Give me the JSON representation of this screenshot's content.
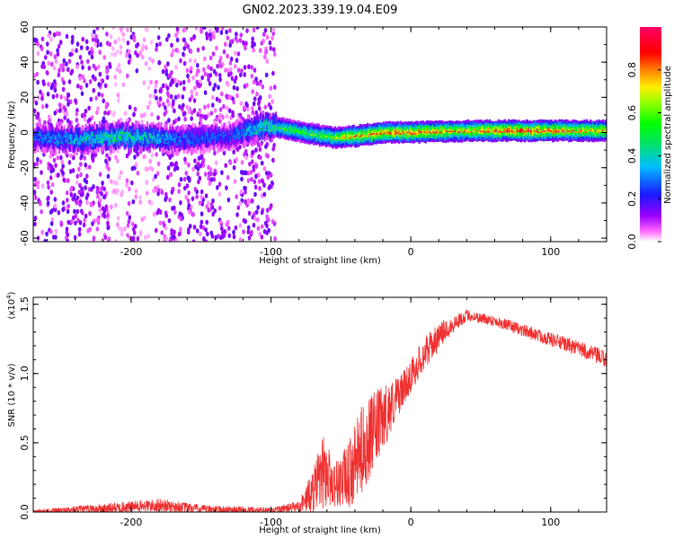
{
  "title": "GN02.2023.339.19.04.E09",
  "colors": {
    "snr_line": "#ef3030",
    "axes": "#000000",
    "colorbar": [
      "#ffffff",
      "#ff66ff",
      "#9900ff",
      "#1a1aff",
      "#00bfff",
      "#00e070",
      "#99ff00",
      "#ffee00",
      "#ff8000",
      "#ff0000",
      "#ff0066"
    ]
  },
  "chart_data": [
    {
      "type": "heatmap",
      "name": "spectrogram",
      "xlabel": "Height of straight line (km)",
      "ylabel": "Frequency (Hz)",
      "xlim": [
        -270,
        140
      ],
      "ylim": [
        -62,
        60
      ],
      "xticks": [
        -200,
        -100,
        0,
        100
      ],
      "xtick_labels": [
        "-200",
        "-100",
        "0",
        "100"
      ],
      "yticks": [
        -60,
        -40,
        -20,
        0,
        20,
        40,
        60
      ],
      "ytick_labels": [
        "-60",
        "-40",
        "-20",
        "0",
        "20",
        "40",
        "60"
      ],
      "colorbar": {
        "label": "Normalized spectral amplitude",
        "range": [
          0,
          1
        ],
        "ticks": [
          0.0,
          0.2,
          0.4,
          0.6,
          0.8
        ],
        "tick_labels": [
          "0.0",
          "0.2",
          "0.4",
          "0.6",
          "0.8"
        ]
      },
      "features": {
        "noise_region_x": [
          -270,
          -97
        ],
        "noise_gaps_x": [
          [
            -215,
            -203
          ],
          [
            -195,
            -183
          ]
        ],
        "signal_track": [
          {
            "x": -265,
            "f": -3,
            "amp": 0.35
          },
          {
            "x": -240,
            "f": -4,
            "amp": 0.45
          },
          {
            "x": -210,
            "f": -2,
            "amp": 0.55
          },
          {
            "x": -190,
            "f": -3,
            "amp": 0.5
          },
          {
            "x": -165,
            "f": -4,
            "amp": 0.35
          },
          {
            "x": -130,
            "f": -2,
            "amp": 0.3
          },
          {
            "x": -105,
            "f": 4,
            "amp": 0.55
          },
          {
            "x": -90,
            "f": 2,
            "amp": 0.6
          },
          {
            "x": -70,
            "f": -1,
            "amp": 0.65
          },
          {
            "x": -55,
            "f": -3,
            "amp": 0.7
          },
          {
            "x": -40,
            "f": -2,
            "amp": 0.9
          },
          {
            "x": -20,
            "f": 0,
            "amp": 0.9
          },
          {
            "x": 0,
            "f": 0,
            "amp": 0.95
          },
          {
            "x": 40,
            "f": 1,
            "amp": 0.85
          },
          {
            "x": 80,
            "f": 1,
            "amp": 1.0
          },
          {
            "x": 110,
            "f": 1,
            "amp": 0.9
          },
          {
            "x": 140,
            "f": 1,
            "amp": 0.85
          }
        ]
      }
    },
    {
      "type": "line",
      "name": "snr",
      "xlabel": "Height of straight line (km)",
      "ylabel": "SNR (10 * v/v)",
      "y_multiplier_label": "(x10",
      "y_multiplier_exp": "4",
      "y_multiplier_close": ")",
      "xlim": [
        -270,
        140
      ],
      "ylim": [
        0,
        1.55
      ],
      "xticks": [
        -200,
        -100,
        0,
        100
      ],
      "xtick_labels": [
        "-200",
        "-100",
        "0",
        "100"
      ],
      "yticks": [
        0.0,
        0.5,
        1.0,
        1.5
      ],
      "ytick_labels": [
        "0.0",
        "0.5",
        "1.0",
        "1.5"
      ],
      "envelope": [
        {
          "x": -270,
          "y": 0.0,
          "noise": 0.02
        },
        {
          "x": -210,
          "y": 0.03,
          "noise": 0.05
        },
        {
          "x": -180,
          "y": 0.05,
          "noise": 0.06
        },
        {
          "x": -150,
          "y": 0.02,
          "noise": 0.04
        },
        {
          "x": -100,
          "y": 0.01,
          "noise": 0.03
        },
        {
          "x": -80,
          "y": 0.04,
          "noise": 0.05
        },
        {
          "x": -70,
          "y": 0.15,
          "noise": 0.2
        },
        {
          "x": -62,
          "y": 0.3,
          "noise": 0.35
        },
        {
          "x": -55,
          "y": 0.2,
          "noise": 0.2
        },
        {
          "x": -45,
          "y": 0.25,
          "noise": 0.3
        },
        {
          "x": -35,
          "y": 0.45,
          "noise": 0.4
        },
        {
          "x": -25,
          "y": 0.6,
          "noise": 0.35
        },
        {
          "x": -15,
          "y": 0.75,
          "noise": 0.25
        },
        {
          "x": -5,
          "y": 0.9,
          "noise": 0.15
        },
        {
          "x": 10,
          "y": 1.15,
          "noise": 0.15
        },
        {
          "x": 25,
          "y": 1.32,
          "noise": 0.1
        },
        {
          "x": 40,
          "y": 1.42,
          "noise": 0.05
        },
        {
          "x": 60,
          "y": 1.38,
          "noise": 0.05
        },
        {
          "x": 90,
          "y": 1.28,
          "noise": 0.06
        },
        {
          "x": 120,
          "y": 1.18,
          "noise": 0.07
        },
        {
          "x": 140,
          "y": 1.1,
          "noise": 0.08
        }
      ]
    }
  ]
}
